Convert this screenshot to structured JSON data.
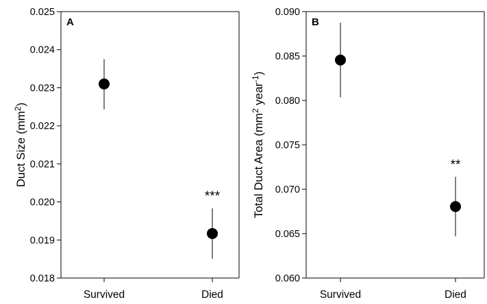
{
  "chart_data": [
    {
      "type": "scatter",
      "panel_label": "A",
      "ylabel": "Duct Size (mm2)",
      "ylabel_parts": {
        "before": "Duct Size (mm",
        "sup": "2",
        "after": ")"
      },
      "categories": [
        "Survived",
        "Died"
      ],
      "values": [
        0.0231,
        0.01917
      ],
      "error_low": [
        0.02243,
        0.01851
      ],
      "error_high": [
        0.02375,
        0.01983
      ],
      "annotations": [
        "",
        "***"
      ],
      "ylim": [
        0.018,
        0.025
      ],
      "yticks": [
        "0.018",
        "0.019",
        "0.020",
        "0.021",
        "0.022",
        "0.023",
        "0.024",
        "0.025"
      ],
      "xlabel": "",
      "grid": false,
      "legend": "none"
    },
    {
      "type": "scatter",
      "panel_label": "B",
      "ylabel": "Total Duct Area (mm2 year-1)",
      "ylabel_parts": {
        "before": "Total Duct Area (mm",
        "sup": "2",
        "middle": " year",
        "sup2": "-1",
        "after": ")"
      },
      "categories": [
        "Survived",
        "Died"
      ],
      "values": [
        0.08455,
        0.06805
      ],
      "error_low": [
        0.08035,
        0.0647
      ],
      "error_high": [
        0.08875,
        0.0714
      ],
      "annotations": [
        "",
        "**"
      ],
      "ylim": [
        0.06,
        0.09
      ],
      "yticks": [
        "0.060",
        "0.065",
        "0.070",
        "0.075",
        "0.080",
        "0.085",
        "0.090"
      ],
      "xlabel": "",
      "grid": false,
      "legend": "none"
    }
  ]
}
